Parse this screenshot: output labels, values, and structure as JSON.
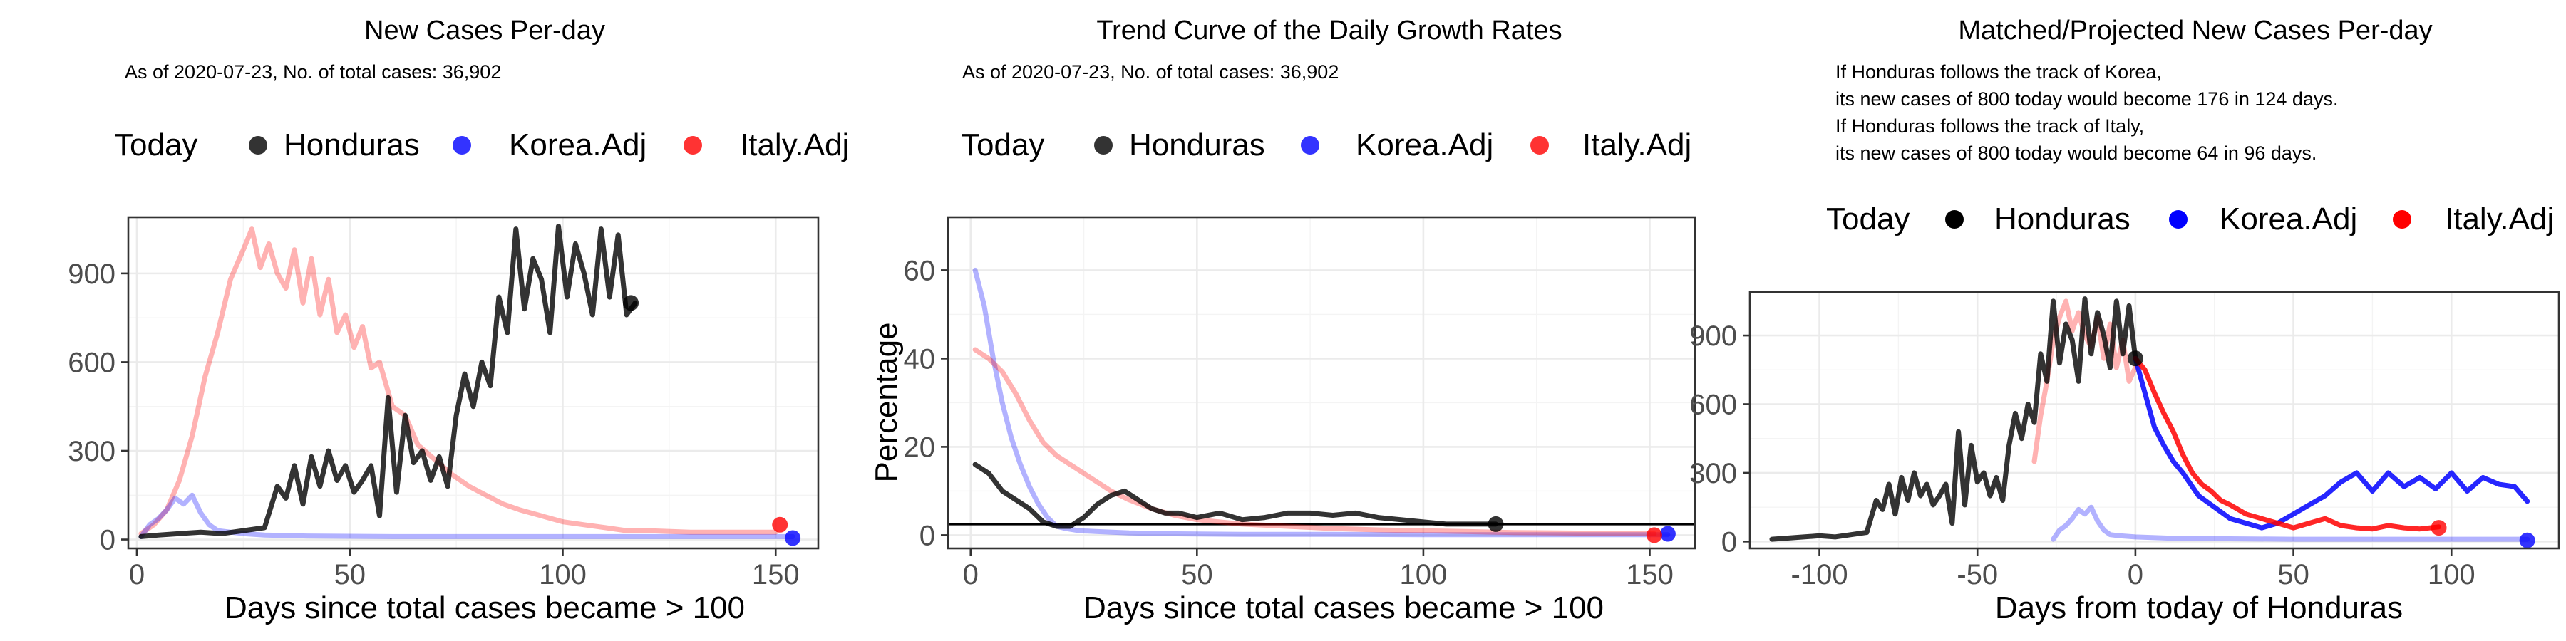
{
  "chart_data": [
    {
      "type": "line",
      "title": "New Cases Per-day",
      "subtitle": "As of 2020-07-23, No. of total cases: 36,902",
      "xlabel": "Days since total cases became > 100",
      "ylabel": "",
      "xlim": [
        -2,
        160
      ],
      "ylim": [
        -30,
        1090
      ],
      "xticks": [
        0,
        50,
        100,
        150
      ],
      "yticks": [
        0,
        300,
        600,
        900
      ],
      "legend": {
        "position": "top",
        "title": "Today",
        "entries": [
          "Honduras",
          "Korea.Adj",
          "Italy.Adj"
        ]
      },
      "grid": true,
      "series": [
        {
          "name": "Italy.Adj",
          "color": "#ff0000",
          "alpha": 0.3,
          "x": [
            1,
            4,
            7,
            10,
            13,
            16,
            19,
            22,
            25,
            27,
            29,
            31,
            33,
            35,
            37,
            39,
            41,
            43,
            45,
            47,
            49,
            51,
            53,
            55,
            57,
            60,
            63,
            66,
            70,
            74,
            78,
            82,
            86,
            90,
            95,
            100,
            105,
            110,
            115,
            120,
            130,
            140,
            150
          ],
          "y": [
            20,
            50,
            100,
            200,
            350,
            550,
            700,
            880,
            980,
            1050,
            920,
            1000,
            900,
            850,
            980,
            800,
            950,
            760,
            880,
            700,
            760,
            650,
            720,
            580,
            600,
            450,
            420,
            320,
            270,
            220,
            180,
            150,
            120,
            100,
            80,
            60,
            50,
            40,
            30,
            30,
            25,
            25,
            25
          ]
        },
        {
          "name": "Korea.Adj",
          "color": "#0000ff",
          "alpha": 0.3,
          "x": [
            1,
            3,
            5,
            7,
            9,
            11,
            13,
            15,
            17,
            19,
            22,
            25,
            30,
            40,
            60,
            80,
            100,
            120,
            140,
            154
          ],
          "y": [
            10,
            50,
            70,
            100,
            140,
            120,
            150,
            90,
            50,
            30,
            25,
            20,
            15,
            12,
            10,
            10,
            10,
            10,
            10,
            10
          ]
        },
        {
          "name": "Honduras",
          "color": "#000000",
          "alpha": 0.8,
          "x": [
            1,
            5,
            10,
            15,
            20,
            25,
            30,
            33,
            35,
            37,
            39,
            41,
            43,
            45,
            47,
            49,
            51,
            53,
            55,
            57,
            59,
            61,
            63,
            65,
            67,
            69,
            71,
            73,
            75,
            77,
            79,
            81,
            83,
            85,
            87,
            89,
            91,
            93,
            95,
            97,
            99,
            101,
            103,
            105,
            107,
            109,
            111,
            113,
            115,
            117
          ],
          "y": [
            10,
            15,
            20,
            25,
            20,
            30,
            40,
            180,
            140,
            250,
            120,
            280,
            180,
            300,
            200,
            250,
            160,
            200,
            250,
            80,
            480,
            160,
            420,
            260,
            300,
            200,
            280,
            180,
            420,
            560,
            450,
            600,
            520,
            820,
            700,
            1050,
            780,
            950,
            880,
            700,
            1060,
            820,
            1000,
            900,
            760,
            1050,
            820,
            1030,
            760,
            800
          ]
        }
      ],
      "today_points": [
        {
          "name": "Honduras",
          "color": "#000000",
          "x": 116,
          "y": 800
        },
        {
          "name": "Korea.Adj",
          "color": "#0000ff",
          "x": 154,
          "y": 5
        },
        {
          "name": "Italy.Adj",
          "color": "#ff0000",
          "x": 151,
          "y": 50
        }
      ]
    },
    {
      "type": "line",
      "title": "Trend Curve of the Daily Growth Rates",
      "subtitle": "As of 2020-07-23, No. of total cases: 36,902",
      "xlabel": "Days since total cases became > 100",
      "ylabel": "Percentage",
      "xlim": [
        -5,
        160
      ],
      "ylim": [
        -3,
        72
      ],
      "xticks": [
        0,
        50,
        100,
        150
      ],
      "yticks": [
        0,
        20,
        40,
        60
      ],
      "hline": 2.5,
      "legend": {
        "position": "top",
        "title": "Today",
        "entries": [
          "Honduras",
          "Korea.Adj",
          "Italy.Adj"
        ]
      },
      "grid": true,
      "series": [
        {
          "name": "Korea.Adj",
          "color": "#0000ff",
          "alpha": 0.3,
          "x": [
            1,
            3,
            5,
            7,
            9,
            11,
            13,
            15,
            17,
            19,
            21,
            24,
            28,
            35,
            45,
            60,
            80,
            100,
            120,
            140,
            154
          ],
          "y": [
            60,
            52,
            40,
            30,
            22,
            16,
            11,
            7,
            4,
            2,
            1.5,
            1,
            0.8,
            0.5,
            0.3,
            0.2,
            0.2,
            0.1,
            0.1,
            0.1,
            0.1
          ]
        },
        {
          "name": "Italy.Adj",
          "color": "#ff0000",
          "alpha": 0.3,
          "x": [
            1,
            4,
            7,
            10,
            13,
            16,
            19,
            22,
            25,
            28,
            31,
            35,
            40,
            45,
            50,
            55,
            60,
            70,
            80,
            90,
            100,
            110,
            120,
            130,
            140,
            151
          ],
          "y": [
            42,
            40,
            37,
            32,
            26,
            21,
            18,
            16,
            14,
            12,
            10,
            8,
            6,
            4.5,
            3.5,
            3,
            2.5,
            2,
            1.5,
            1.2,
            1,
            0.8,
            0.6,
            0.5,
            0.4,
            0.3
          ]
        },
        {
          "name": "Honduras",
          "color": "#000000",
          "alpha": 0.8,
          "x": [
            1,
            4,
            7,
            10,
            13,
            16,
            19,
            22,
            25,
            28,
            31,
            34,
            37,
            40,
            43,
            46,
            50,
            55,
            60,
            65,
            70,
            75,
            80,
            85,
            90,
            95,
            100,
            105,
            110,
            116
          ],
          "y": [
            16,
            14,
            10,
            8,
            6,
            3,
            2,
            2,
            4,
            7,
            9,
            10,
            8,
            6,
            5,
            5,
            4,
            5,
            3.5,
            4,
            5,
            5,
            4.5,
            5,
            4,
            3.5,
            3,
            2.5,
            2.5,
            2.5
          ]
        }
      ],
      "today_points": [
        {
          "name": "Honduras",
          "color": "#000000",
          "x": 116,
          "y": 2.5
        },
        {
          "name": "Korea.Adj",
          "color": "#0000ff",
          "x": 154,
          "y": 0.3
        },
        {
          "name": "Italy.Adj",
          "color": "#ff0000",
          "x": 151,
          "y": 0
        }
      ]
    },
    {
      "type": "line",
      "title": "Matched/Projected New Cases Per-day",
      "subtitle_lines": [
        "If Honduras follows the track of Korea,",
        "its new cases of 800 today would become 176 in 124 days.",
        "If Honduras follows the track of Italy,",
        "its new cases of 800 today would become 64 in 96 days."
      ],
      "xlabel": "Days from today of Honduras",
      "ylabel": "",
      "xlim": [
        -122,
        134
      ],
      "ylim": [
        -30,
        1090
      ],
      "xticks": [
        -100,
        -50,
        0,
        50,
        100
      ],
      "yticks": [
        0,
        300,
        600,
        900
      ],
      "legend": {
        "position": "top",
        "title": "Today",
        "entries": [
          "Honduras",
          "Korea.Adj",
          "Italy.Adj"
        ]
      },
      "grid": true,
      "series": [
        {
          "name": "Korea.Adj (matched)",
          "color": "#0000ff",
          "alpha": 0.3,
          "x": [
            -26,
            -24,
            -22,
            -20,
            -18,
            -16,
            -14,
            -12,
            -10,
            -8,
            -5,
            0,
            10,
            30,
            50,
            80,
            100,
            124
          ],
          "y": [
            10,
            50,
            70,
            100,
            140,
            120,
            150,
            90,
            50,
            30,
            25,
            20,
            15,
            12,
            10,
            10,
            10,
            10
          ]
        },
        {
          "name": "Italy.Adj (matched)",
          "color": "#ff0000",
          "alpha": 0.3,
          "x": [
            -32,
            -30,
            -28,
            -26,
            -24,
            -22,
            -20,
            -18,
            -16,
            -14,
            -12,
            -10,
            -8,
            -6,
            -4,
            -2,
            0
          ],
          "y": [
            350,
            550,
            700,
            880,
            980,
            1050,
            920,
            1000,
            900,
            850,
            980,
            800,
            950,
            760,
            880,
            700,
            760
          ]
        },
        {
          "name": "Honduras",
          "color": "#000000",
          "alpha": 0.8,
          "x": [
            -115,
            -110,
            -105,
            -100,
            -95,
            -90,
            -85,
            -82,
            -80,
            -78,
            -76,
            -74,
            -72,
            -70,
            -68,
            -66,
            -64,
            -62,
            -60,
            -58,
            -56,
            -54,
            -52,
            -50,
            -48,
            -46,
            -44,
            -42,
            -40,
            -38,
            -36,
            -34,
            -32,
            -30,
            -28,
            -26,
            -24,
            -22,
            -20,
            -18,
            -16,
            -14,
            -12,
            -10,
            -8,
            -6,
            -4,
            -2,
            0
          ],
          "y": [
            10,
            15,
            20,
            25,
            20,
            30,
            40,
            180,
            140,
            250,
            120,
            280,
            180,
            300,
            200,
            250,
            160,
            200,
            250,
            80,
            480,
            160,
            420,
            260,
            300,
            200,
            280,
            180,
            420,
            560,
            450,
            600,
            520,
            820,
            700,
            1050,
            780,
            950,
            880,
            700,
            1060,
            820,
            1000,
            900,
            760,
            1050,
            820,
            1030,
            800
          ]
        },
        {
          "name": "Korea.Adj (projected)",
          "color": "#0000ff",
          "alpha": 0.85,
          "x": [
            0,
            3,
            6,
            9,
            12,
            15,
            20,
            25,
            30,
            35,
            40,
            45,
            50,
            55,
            60,
            65,
            70,
            75,
            80,
            85,
            90,
            95,
            100,
            105,
            110,
            115,
            120,
            124
          ],
          "y": [
            800,
            650,
            500,
            420,
            350,
            300,
            200,
            150,
            100,
            80,
            60,
            80,
            120,
            160,
            200,
            260,
            300,
            220,
            300,
            240,
            280,
            230,
            300,
            220,
            280,
            250,
            240,
            176
          ]
        },
        {
          "name": "Italy.Adj (projected)",
          "color": "#ff0000",
          "alpha": 0.85,
          "x": [
            0,
            3,
            6,
            9,
            12,
            15,
            18,
            21,
            24,
            27,
            30,
            35,
            40,
            45,
            50,
            55,
            60,
            65,
            70,
            75,
            80,
            85,
            90,
            96
          ],
          "y": [
            800,
            750,
            650,
            560,
            480,
            380,
            300,
            250,
            220,
            180,
            160,
            120,
            100,
            80,
            60,
            80,
            100,
            70,
            60,
            55,
            70,
            60,
            55,
            64
          ]
        }
      ],
      "today_points": [
        {
          "name": "Honduras",
          "color": "#000000",
          "x": 0,
          "y": 800
        },
        {
          "name": "Korea.Adj",
          "color": "#0000ff",
          "x": 124,
          "y": 5
        },
        {
          "name": "Italy.Adj",
          "color": "#ff0000",
          "x": 96,
          "y": 60
        }
      ]
    }
  ]
}
